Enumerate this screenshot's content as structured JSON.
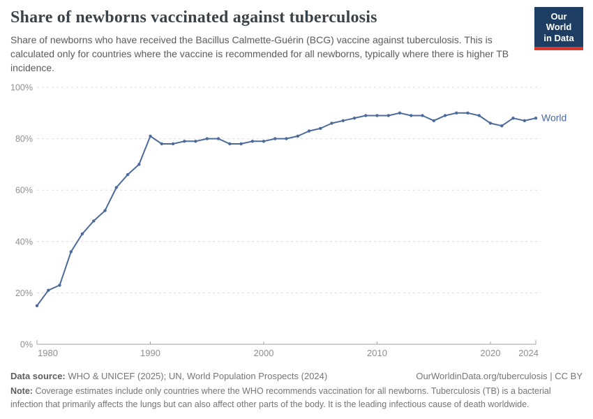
{
  "logo": {
    "line1": "Our World",
    "line2": "in Data",
    "bg_color": "#1d3d63",
    "accent_color": "#d8392c"
  },
  "chart_data": {
    "type": "line",
    "title": "Share of newborns vaccinated against tuberculosis",
    "subtitle": "Share of newborns who have received the Bacillus Calmette-Guérin (BCG) vaccine against tuberculosis. This is calculated only for countries where the vaccine is recommended for all newborns, typically where there is higher TB incidence.",
    "xlabel": "",
    "ylabel": "",
    "xlim": [
      1980,
      2024
    ],
    "ylim": [
      0,
      100
    ],
    "x_ticks": [
      1980,
      1990,
      2000,
      2010,
      2020,
      2024
    ],
    "y_ticks": [
      0,
      20,
      40,
      60,
      80,
      100
    ],
    "y_tick_suffix": "%",
    "grid": "horizontal-dashed",
    "legend_position": "line-end",
    "colors": {
      "grid": "#dcdcdc",
      "axis": "#a3a3a3",
      "tick_label": "#8f8f8f"
    },
    "series": [
      {
        "name": "World",
        "color": "#4C6A9C",
        "x": [
          1980,
          1981,
          1982,
          1983,
          1984,
          1985,
          1986,
          1987,
          1988,
          1989,
          1990,
          1991,
          1992,
          1993,
          1994,
          1995,
          1996,
          1997,
          1998,
          1999,
          2000,
          2001,
          2002,
          2003,
          2004,
          2005,
          2006,
          2007,
          2008,
          2009,
          2010,
          2011,
          2012,
          2013,
          2014,
          2015,
          2016,
          2017,
          2018,
          2019,
          2020,
          2021,
          2022,
          2023,
          2024
        ],
        "values": [
          15,
          21,
          23,
          36,
          43,
          48,
          52,
          61,
          66,
          70,
          81,
          78,
          78,
          79,
          79,
          80,
          80,
          78,
          78,
          79,
          79,
          80,
          80,
          81,
          83,
          84,
          86,
          87,
          88,
          89,
          89,
          89,
          90,
          89,
          89,
          87,
          89,
          90,
          90,
          89,
          86,
          85,
          88,
          87,
          88
        ]
      }
    ]
  },
  "footer": {
    "data_source_label": "Data source:",
    "data_source": "WHO & UNICEF (2025); UN, World Population Prospects (2024)",
    "link": "OurWorldinData.org/tuberculosis | CC BY",
    "note_label": "Note:",
    "note": "Coverage estimates include only countries where the WHO recommends vaccination for all newborns. Tuberculosis (TB) is a bacterial infection that primarily affects the lungs but can also affect other parts of the body. It is the leading infectious cause of death worldwide."
  }
}
